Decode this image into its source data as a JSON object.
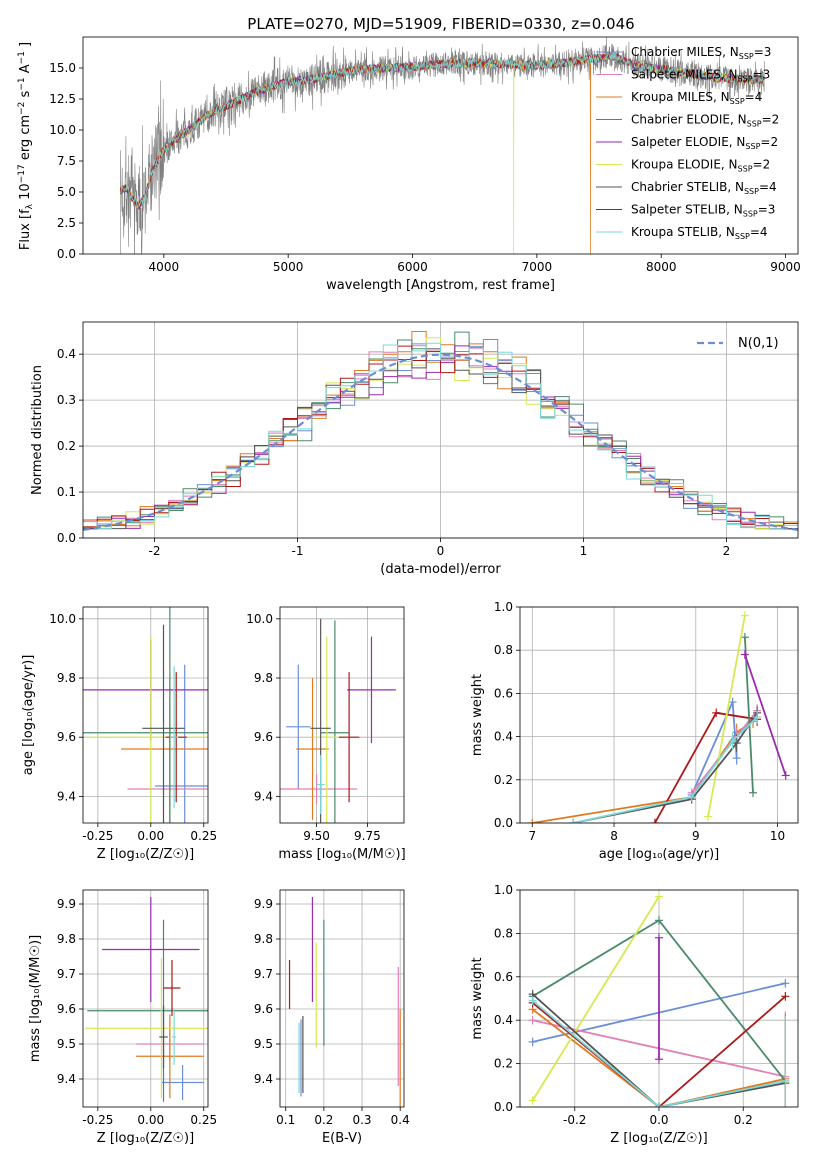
{
  "figure": {
    "title": "PLATE=0270, MJD=51909, FIBERID=0330, z=0.046"
  },
  "models": [
    {
      "key": "cm",
      "name": "Chabrier MILES, N",
      "nssp": "3",
      "color": "#6a8fd8"
    },
    {
      "key": "sm",
      "name": "Salpeter MILES, N",
      "nssp": "3",
      "color": "#e080b8"
    },
    {
      "key": "km",
      "name": "Kroupa MILES, N",
      "nssp": "4",
      "color": "#e07a20"
    },
    {
      "key": "ce",
      "name": "Chabrier ELODIE, N",
      "nssp": "2",
      "color": "#4a8a6a"
    },
    {
      "key": "se",
      "name": "Salpeter ELODIE, N",
      "nssp": "2",
      "color": "#9a2ab0"
    },
    {
      "key": "ke",
      "name": "Kroupa ELODIE, N",
      "nssp": "2",
      "color": "#d8e850"
    },
    {
      "key": "cs",
      "name": "Chabrier STELIB, N",
      "nssp": "4",
      "color": "#555555"
    },
    {
      "key": "ss",
      "name": "Salpeter STELIB, N",
      "nssp": "3",
      "color": "#b01818"
    },
    {
      "key": "ks",
      "name": "Kroupa STELIB, N",
      "nssp": "4",
      "color": "#7ad8d8"
    }
  ],
  "legend_sub": "SSP",
  "chart_data": [
    {
      "id": "spectrum",
      "type": "line",
      "xlabel": "wavelength [Angstrom, rest frame]",
      "ylabel_parts": [
        "Flux [f",
        "λ",
        "10",
        "−17",
        "erg cm",
        "−2",
        "s",
        "−1",
        "A",
        "−1",
        "]"
      ],
      "xlim": [
        3350,
        9100
      ],
      "ylim": [
        0,
        17.5
      ],
      "xticks": [
        4000,
        5000,
        6000,
        7000,
        8000,
        9000
      ],
      "yticks": [
        0.0,
        2.5,
        5.0,
        7.5,
        10.0,
        12.5,
        15.0
      ],
      "continuum_x": [
        3650,
        3700,
        3760,
        3800,
        3850,
        3900,
        3950,
        4000,
        4100,
        4200,
        4300,
        4400,
        4500,
        4600,
        4700,
        4800,
        4900,
        5000,
        5200,
        5400,
        5600,
        5800,
        6000,
        6200,
        6400,
        6600,
        6800,
        7000,
        7200,
        7400,
        7500,
        7600,
        7700,
        7800,
        8000,
        8200,
        8400,
        8600,
        8800
      ],
      "continuum_y": [
        5.0,
        5.4,
        4.3,
        3.9,
        4.6,
        6.5,
        7.5,
        8.4,
        9.3,
        10.0,
        10.8,
        11.5,
        11.9,
        12.4,
        12.9,
        13.3,
        13.6,
        13.9,
        14.1,
        14.6,
        14.9,
        15.0,
        15.1,
        15.3,
        15.4,
        15.4,
        15.3,
        15.2,
        15.4,
        15.7,
        15.8,
        16.0,
        15.6,
        15.2,
        14.9,
        14.6,
        14.3,
        14.1,
        14.0
      ],
      "drops": [
        {
          "model": "ke",
          "x": 6810
        },
        {
          "model": "km",
          "x": 7430
        }
      ]
    },
    {
      "id": "residuals",
      "type": "histogram",
      "xlabel": "(data-model)/error",
      "ylabel": "Normed distribution",
      "xlim": [
        -2.5,
        2.5
      ],
      "ylim": [
        0,
        0.47
      ],
      "xticks": [
        -2,
        -1,
        0,
        1,
        2
      ],
      "yticks": [
        0.0,
        0.1,
        0.2,
        0.3,
        0.4
      ],
      "bin_width": 0.1,
      "reference": {
        "label": "N(0,1)",
        "mu": 0,
        "sigma": 1
      }
    },
    {
      "id": "age_vs_Z",
      "type": "errorbar",
      "xlabel": "Z [log₁₀(Z/Z☉)]",
      "ylabel": "age [log₁₀(age/yr)]",
      "xlim": [
        -0.32,
        0.27
      ],
      "ylim": [
        9.31,
        10.04
      ],
      "xticks": [
        -0.25,
        0.0,
        0.25
      ],
      "yticks": [
        9.4,
        9.6,
        9.8,
        10.0
      ],
      "points": [
        {
          "model": "cm",
          "x": 0.16,
          "y": 9.435,
          "xerr": 0.14,
          "yerr": 0.41
        },
        {
          "model": "sm",
          "x": 0.09,
          "y": 9.425,
          "xerr": 0.2,
          "yerr": 0.3
        },
        {
          "model": "km",
          "x": 0.09,
          "y": 9.56,
          "xerr": 0.23,
          "yerr": 0.24
        },
        {
          "model": "ce",
          "x": 0.09,
          "y": 9.615,
          "xerr": 0.45,
          "yerr": 0.45
        },
        {
          "model": "se",
          "x": 0.0,
          "y": 9.76,
          "xerr": 0.36,
          "yerr": 0.17
        },
        {
          "model": "ke",
          "x": 0.0,
          "y": 9.6,
          "xerr": 0.3,
          "yerr": 0.34
        },
        {
          "model": "cs",
          "x": 0.06,
          "y": 9.63,
          "xerr": 0.1,
          "yerr": 0.35
        },
        {
          "model": "ss",
          "x": 0.12,
          "y": 9.6,
          "xerr": 0.05,
          "yerr": 0.22
        },
        {
          "model": "ks",
          "x": 0.11,
          "y": 9.6,
          "xerr": 0.02,
          "yerr": 0.24
        }
      ]
    },
    {
      "id": "age_vs_mass",
      "type": "errorbar",
      "xlabel": "mass [log₁₀(M/M☉)]",
      "ylabel": "",
      "xlim": [
        9.32,
        9.93
      ],
      "ylim": [
        9.31,
        10.04
      ],
      "xticks": [
        9.5,
        9.75
      ],
      "yticks": [
        9.4,
        9.6,
        9.8,
        10.0
      ],
      "points": [
        {
          "model": "cm",
          "x": 9.41,
          "y": 9.635,
          "xerr": 0.06,
          "yerr": 0.21
        },
        {
          "model": "sm",
          "x": 9.5,
          "y": 9.425,
          "xerr": 0.2,
          "yerr": 0.05
        },
        {
          "model": "km",
          "x": 9.48,
          "y": 9.56,
          "xerr": 0.08,
          "yerr": 0.24
        },
        {
          "model": "ce",
          "x": 9.59,
          "y": 9.615,
          "xerr": 0.07,
          "yerr": 0.38
        },
        {
          "model": "se",
          "x": 9.77,
          "y": 9.76,
          "xerr": 0.12,
          "yerr": 0.18
        },
        {
          "model": "ke",
          "x": 9.55,
          "y": 9.6,
          "xerr": 0.07,
          "yerr": 0.34
        },
        {
          "model": "cs",
          "x": 9.52,
          "y": 9.63,
          "xerr": 0.05,
          "yerr": 0.37
        },
        {
          "model": "ss",
          "x": 9.66,
          "y": 9.6,
          "xerr": 0.05,
          "yerr": 0.22
        },
        {
          "model": "ks",
          "x": 9.52,
          "y": 9.44,
          "xerr": 0.02,
          "yerr": 0.1
        }
      ]
    },
    {
      "id": "mass_weight_vs_age",
      "type": "line",
      "xlabel": "age [log₁₀(age/yr)]",
      "ylabel": "mass weight",
      "xlim": [
        6.85,
        10.25
      ],
      "ylim": [
        0,
        1.0
      ],
      "xticks": [
        7,
        8,
        9,
        10
      ],
      "yticks": [
        0.0,
        0.2,
        0.4,
        0.6,
        0.8,
        1.0
      ],
      "series": [
        {
          "model": "km",
          "x": [
            7.0,
            8.95,
            9.5,
            9.7
          ],
          "y": [
            0.0,
            0.12,
            0.42,
            0.47
          ],
          "err": [
            0,
            0.02,
            0.04,
            0.03
          ]
        },
        {
          "model": "cm",
          "x": [
            8.95,
            9.45,
            9.5
          ],
          "y": [
            0.13,
            0.56,
            0.3
          ],
          "err": [
            0.02,
            0.02,
            0.03
          ]
        },
        {
          "model": "sm",
          "x": [
            8.95,
            9.5,
            9.75
          ],
          "y": [
            0.14,
            0.4,
            0.52
          ],
          "err": [
            0.02,
            0.04,
            0.03
          ]
        },
        {
          "model": "ss",
          "x": [
            8.5,
            9.25,
            9.75
          ],
          "y": [
            0.0,
            0.51,
            0.48
          ],
          "err": [
            0,
            0.02,
            0.03
          ]
        },
        {
          "model": "ce",
          "x": [
            9.6,
            9.7
          ],
          "y": [
            0.86,
            0.14
          ],
          "err": [
            0.02,
            0.02
          ]
        },
        {
          "model": "se",
          "x": [
            9.6,
            10.1
          ],
          "y": [
            0.78,
            0.22
          ],
          "err": [
            0.02,
            0.02
          ]
        },
        {
          "model": "ke",
          "x": [
            9.15,
            9.6
          ],
          "y": [
            0.03,
            0.96
          ],
          "err": [
            0.02,
            0.02
          ]
        },
        {
          "model": "cs",
          "x": [
            7.5,
            8.95,
            9.5,
            9.75
          ],
          "y": [
            0.0,
            0.11,
            0.37,
            0.51
          ],
          "err": [
            0,
            0.02,
            0.04,
            0.03
          ]
        },
        {
          "model": "ks",
          "x": [
            7.5,
            8.95,
            9.45,
            9.75
          ],
          "y": [
            0.0,
            0.12,
            0.38,
            0.49
          ],
          "err": [
            0,
            0.02,
            0.04,
            0.03
          ]
        }
      ]
    },
    {
      "id": "mass_vs_Z",
      "type": "errorbar",
      "xlabel": "Z [log₁₀(Z/Z☉)]",
      "ylabel": "mass [log₁₀(M/M☉)]",
      "xlim": [
        -0.32,
        0.27
      ],
      "ylim": [
        9.32,
        9.94
      ],
      "xticks": [
        -0.25,
        0.0,
        0.25
      ],
      "yticks": [
        9.4,
        9.5,
        9.6,
        9.7,
        9.8,
        9.9
      ],
      "points": [
        {
          "model": "cm",
          "x": 0.15,
          "y": 9.39,
          "xerr": 0.1,
          "yerr": 0.05
        },
        {
          "model": "sm",
          "x": 0.09,
          "y": 9.5,
          "xerr": 0.16,
          "yerr": 0.05
        },
        {
          "model": "km",
          "x": 0.09,
          "y": 9.465,
          "xerr": 0.16,
          "yerr": 0.12
        },
        {
          "model": "ce",
          "x": 0.06,
          "y": 9.595,
          "xerr": 0.36,
          "yerr": 0.26
        },
        {
          "model": "se",
          "x": 0.0,
          "y": 9.77,
          "xerr": 0.23,
          "yerr": 0.15
        },
        {
          "model": "ke",
          "x": 0.05,
          "y": 9.545,
          "xerr": 0.36,
          "yerr": 0.2
        },
        {
          "model": "cs",
          "x": 0.06,
          "y": 9.52,
          "xerr": 0.02,
          "yerr": 0.09
        },
        {
          "model": "ss",
          "x": 0.1,
          "y": 9.66,
          "xerr": 0.04,
          "yerr": 0.08
        },
        {
          "model": "ks",
          "x": 0.11,
          "y": 9.52,
          "xerr": 0.01,
          "yerr": 0.08
        }
      ]
    },
    {
      "id": "mass_vs_ebv",
      "type": "errorbar",
      "xlabel": "E(B-V)",
      "ylabel": "",
      "xlim": [
        0.085,
        0.41
      ],
      "ylim": [
        9.32,
        9.94
      ],
      "xticks": [
        0.1,
        0.2,
        0.3,
        0.4
      ],
      "yticks": [
        9.4,
        9.5,
        9.6,
        9.7,
        9.8,
        9.9
      ],
      "points": [
        {
          "model": "cm",
          "x": 0.14,
          "y": 9.46,
          "xerr": 0,
          "yerr": 0.11
        },
        {
          "model": "sm",
          "x": 0.395,
          "y": 9.55,
          "xerr": 0,
          "yerr": 0.17
        },
        {
          "model": "km",
          "x": 0.4,
          "y": 9.45,
          "xerr": 0,
          "yerr": 0.15
        },
        {
          "model": "ce",
          "x": 0.2,
          "y": 9.675,
          "xerr": 0,
          "yerr": 0.18
        },
        {
          "model": "se",
          "x": 0.17,
          "y": 9.77,
          "xerr": 0,
          "yerr": 0.15
        },
        {
          "model": "ke",
          "x": 0.18,
          "y": 9.64,
          "xerr": 0,
          "yerr": 0.15
        },
        {
          "model": "cs",
          "x": 0.145,
          "y": 9.47,
          "xerr": 0,
          "yerr": 0.11
        },
        {
          "model": "ss",
          "x": 0.11,
          "y": 9.67,
          "xerr": 0,
          "yerr": 0.07
        },
        {
          "model": "ks",
          "x": 0.135,
          "y": 9.46,
          "xerr": 0,
          "yerr": 0.1
        }
      ]
    },
    {
      "id": "mass_weight_vs_Z",
      "type": "line",
      "xlabel": "Z [log₁₀(Z/Z☉)]",
      "ylabel": "mass weight",
      "xlim": [
        -0.33,
        0.33
      ],
      "ylim": [
        0,
        1.0
      ],
      "xticks": [
        -0.2,
        0.0,
        0.2
      ],
      "yticks": [
        0.0,
        0.2,
        0.4,
        0.6,
        0.8,
        1.0
      ],
      "series": [
        {
          "model": "cm",
          "x": [
            -0.3,
            0.3
          ],
          "y": [
            0.3,
            0.57
          ],
          "err": [
            0.02,
            0.02
          ]
        },
        {
          "model": "sm",
          "x": [
            -0.3,
            0.3
          ],
          "y": [
            0.4,
            0.14
          ],
          "err": [
            0.02,
            0.3
          ]
        },
        {
          "model": "km",
          "x": [
            -0.3,
            0.0,
            0.3
          ],
          "y": [
            0.45,
            0.0,
            0.13
          ],
          "err": [
            0.02,
            0,
            0.3
          ]
        },
        {
          "model": "ce",
          "x": [
            -0.3,
            0.0,
            0.3
          ],
          "y": [
            0.51,
            0.86,
            0.12
          ],
          "err": [
            0.02,
            0.02,
            0.3
          ]
        },
        {
          "model": "se",
          "x": [
            0.0,
            0.0
          ],
          "y": [
            0.22,
            0.78
          ],
          "err": [
            0.02,
            0.02
          ]
        },
        {
          "model": "ke",
          "x": [
            -0.3,
            0.0
          ],
          "y": [
            0.03,
            0.97
          ],
          "err": [
            0.02,
            0.02
          ]
        },
        {
          "model": "cs",
          "x": [
            -0.3,
            0.0,
            0.3
          ],
          "y": [
            0.52,
            0.0,
            0.11
          ],
          "err": [
            0.02,
            0,
            0.02
          ]
        },
        {
          "model": "ss",
          "x": [
            -0.3,
            0.0,
            0.3
          ],
          "y": [
            0.48,
            0.0,
            0.51
          ],
          "err": [
            0.02,
            0,
            0.02
          ]
        },
        {
          "model": "ks",
          "x": [
            -0.3,
            0.0,
            0.3
          ],
          "y": [
            0.49,
            0.0,
            0.12
          ],
          "err": [
            0.02,
            0,
            0.3
          ]
        }
      ]
    }
  ]
}
